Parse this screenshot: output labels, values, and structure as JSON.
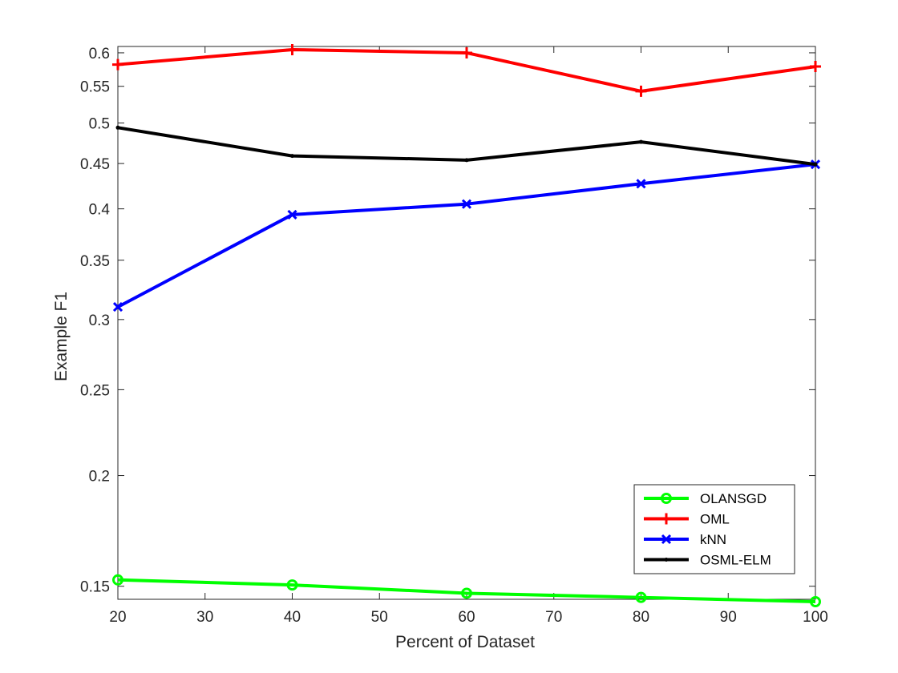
{
  "chart_data": {
    "type": "line",
    "x": [
      20,
      40,
      60,
      80,
      100
    ],
    "xlabel": "Percent of Dataset",
    "ylabel": "Example F1",
    "xlim": [
      20,
      100
    ],
    "ylim": [
      0.145,
      0.61
    ],
    "yscale": "log",
    "grid": false,
    "legend_position": "bottom-right",
    "xticks": [
      "20",
      "30",
      "40",
      "50",
      "60",
      "70",
      "80",
      "90",
      "100"
    ],
    "yticks": [
      "0.15",
      "0.2",
      "0.25",
      "0.3",
      "0.35",
      "0.4",
      "0.45",
      "0.5",
      "0.55",
      "0.6"
    ],
    "series": [
      {
        "name": "OLANSGD",
        "color": "#00ff00",
        "marker": "circle",
        "values": [
          0.1525,
          0.1505,
          0.1473,
          0.1457,
          0.1441
        ]
      },
      {
        "name": "OML",
        "color": "#ff0000",
        "marker": "plus",
        "values": [
          0.582,
          0.605,
          0.6,
          0.543,
          0.579
        ]
      },
      {
        "name": "kNN",
        "color": "#0000ff",
        "marker": "cross",
        "values": [
          0.31,
          0.394,
          0.405,
          0.427,
          0.449
        ]
      },
      {
        "name": "OSML-ELM",
        "color": "#000000",
        "marker": "dot",
        "values": [
          0.494,
          0.459,
          0.454,
          0.476,
          0.449
        ]
      }
    ]
  }
}
